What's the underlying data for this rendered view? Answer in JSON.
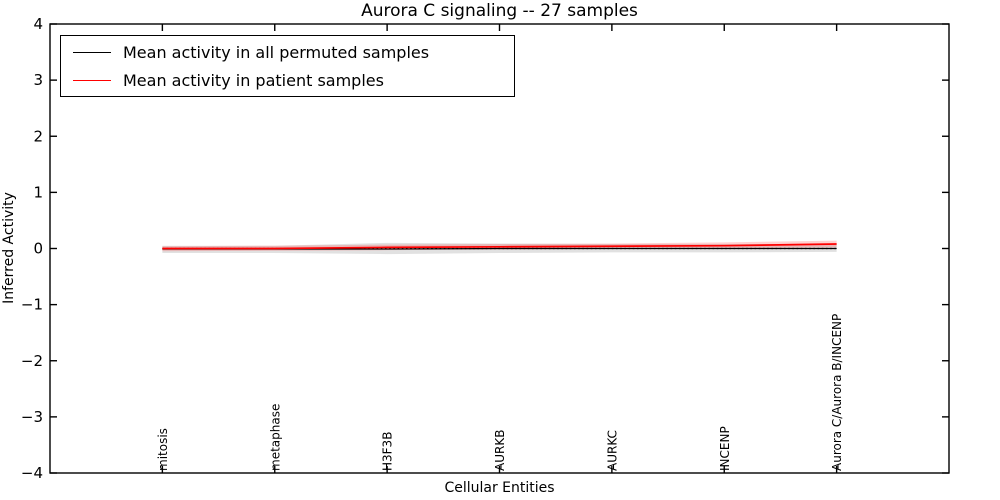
{
  "chart_data": {
    "type": "line",
    "title": "Aurora C signaling -- 27 samples",
    "xlabel": "Cellular Entities",
    "ylabel": "Inferred Activity",
    "categories": [
      "mitosis",
      "metaphase",
      "H3F3B",
      "AURKB",
      "AURKC",
      "INCENP",
      "Aurora C/Aurora B/INCENP"
    ],
    "x_positions": [
      1,
      2,
      3,
      4,
      5,
      6,
      7
    ],
    "xlim": [
      0,
      8
    ],
    "ylim": [
      -4,
      4
    ],
    "yticks": [
      -4,
      -3,
      -2,
      -1,
      0,
      1,
      2,
      3,
      4
    ],
    "ytick_labels": [
      "−4",
      "−3",
      "−2",
      "−1",
      "0",
      "1",
      "2",
      "3",
      "4"
    ],
    "grid": false,
    "legend_position": "upper left",
    "series": [
      {
        "name": "Mean activity in all permuted samples",
        "color": "#000000",
        "style": "solid",
        "width": 1.2,
        "values": [
          -0.01,
          -0.01,
          -0.01,
          0.0,
          0.0,
          0.0,
          0.0
        ]
      },
      {
        "name": "Mean activity in patient samples",
        "color": "#ff0000",
        "style": "solid",
        "width": 1.7,
        "values": [
          0.0,
          0.0,
          0.02,
          0.03,
          0.04,
          0.05,
          0.08
        ]
      }
    ],
    "bands": [
      {
        "name": "permuted-std-band",
        "color": "#bdbdbd",
        "opacity": 0.45,
        "upper": [
          0.05,
          0.05,
          0.1,
          0.09,
          0.08,
          0.08,
          0.08
        ],
        "lower": [
          -0.08,
          -0.08,
          -0.1,
          -0.08,
          -0.07,
          -0.07,
          -0.06
        ]
      },
      {
        "name": "patient-std-band",
        "color": "#ff0000",
        "opacity": 0.18,
        "upper": [
          0.04,
          0.05,
          0.07,
          0.08,
          0.09,
          0.11,
          0.14
        ],
        "lower": [
          -0.05,
          -0.04,
          -0.03,
          -0.02,
          -0.01,
          0.0,
          0.02
        ]
      }
    ],
    "reference_line": {
      "y": 0,
      "color": "#000000",
      "style": "dotted"
    }
  }
}
